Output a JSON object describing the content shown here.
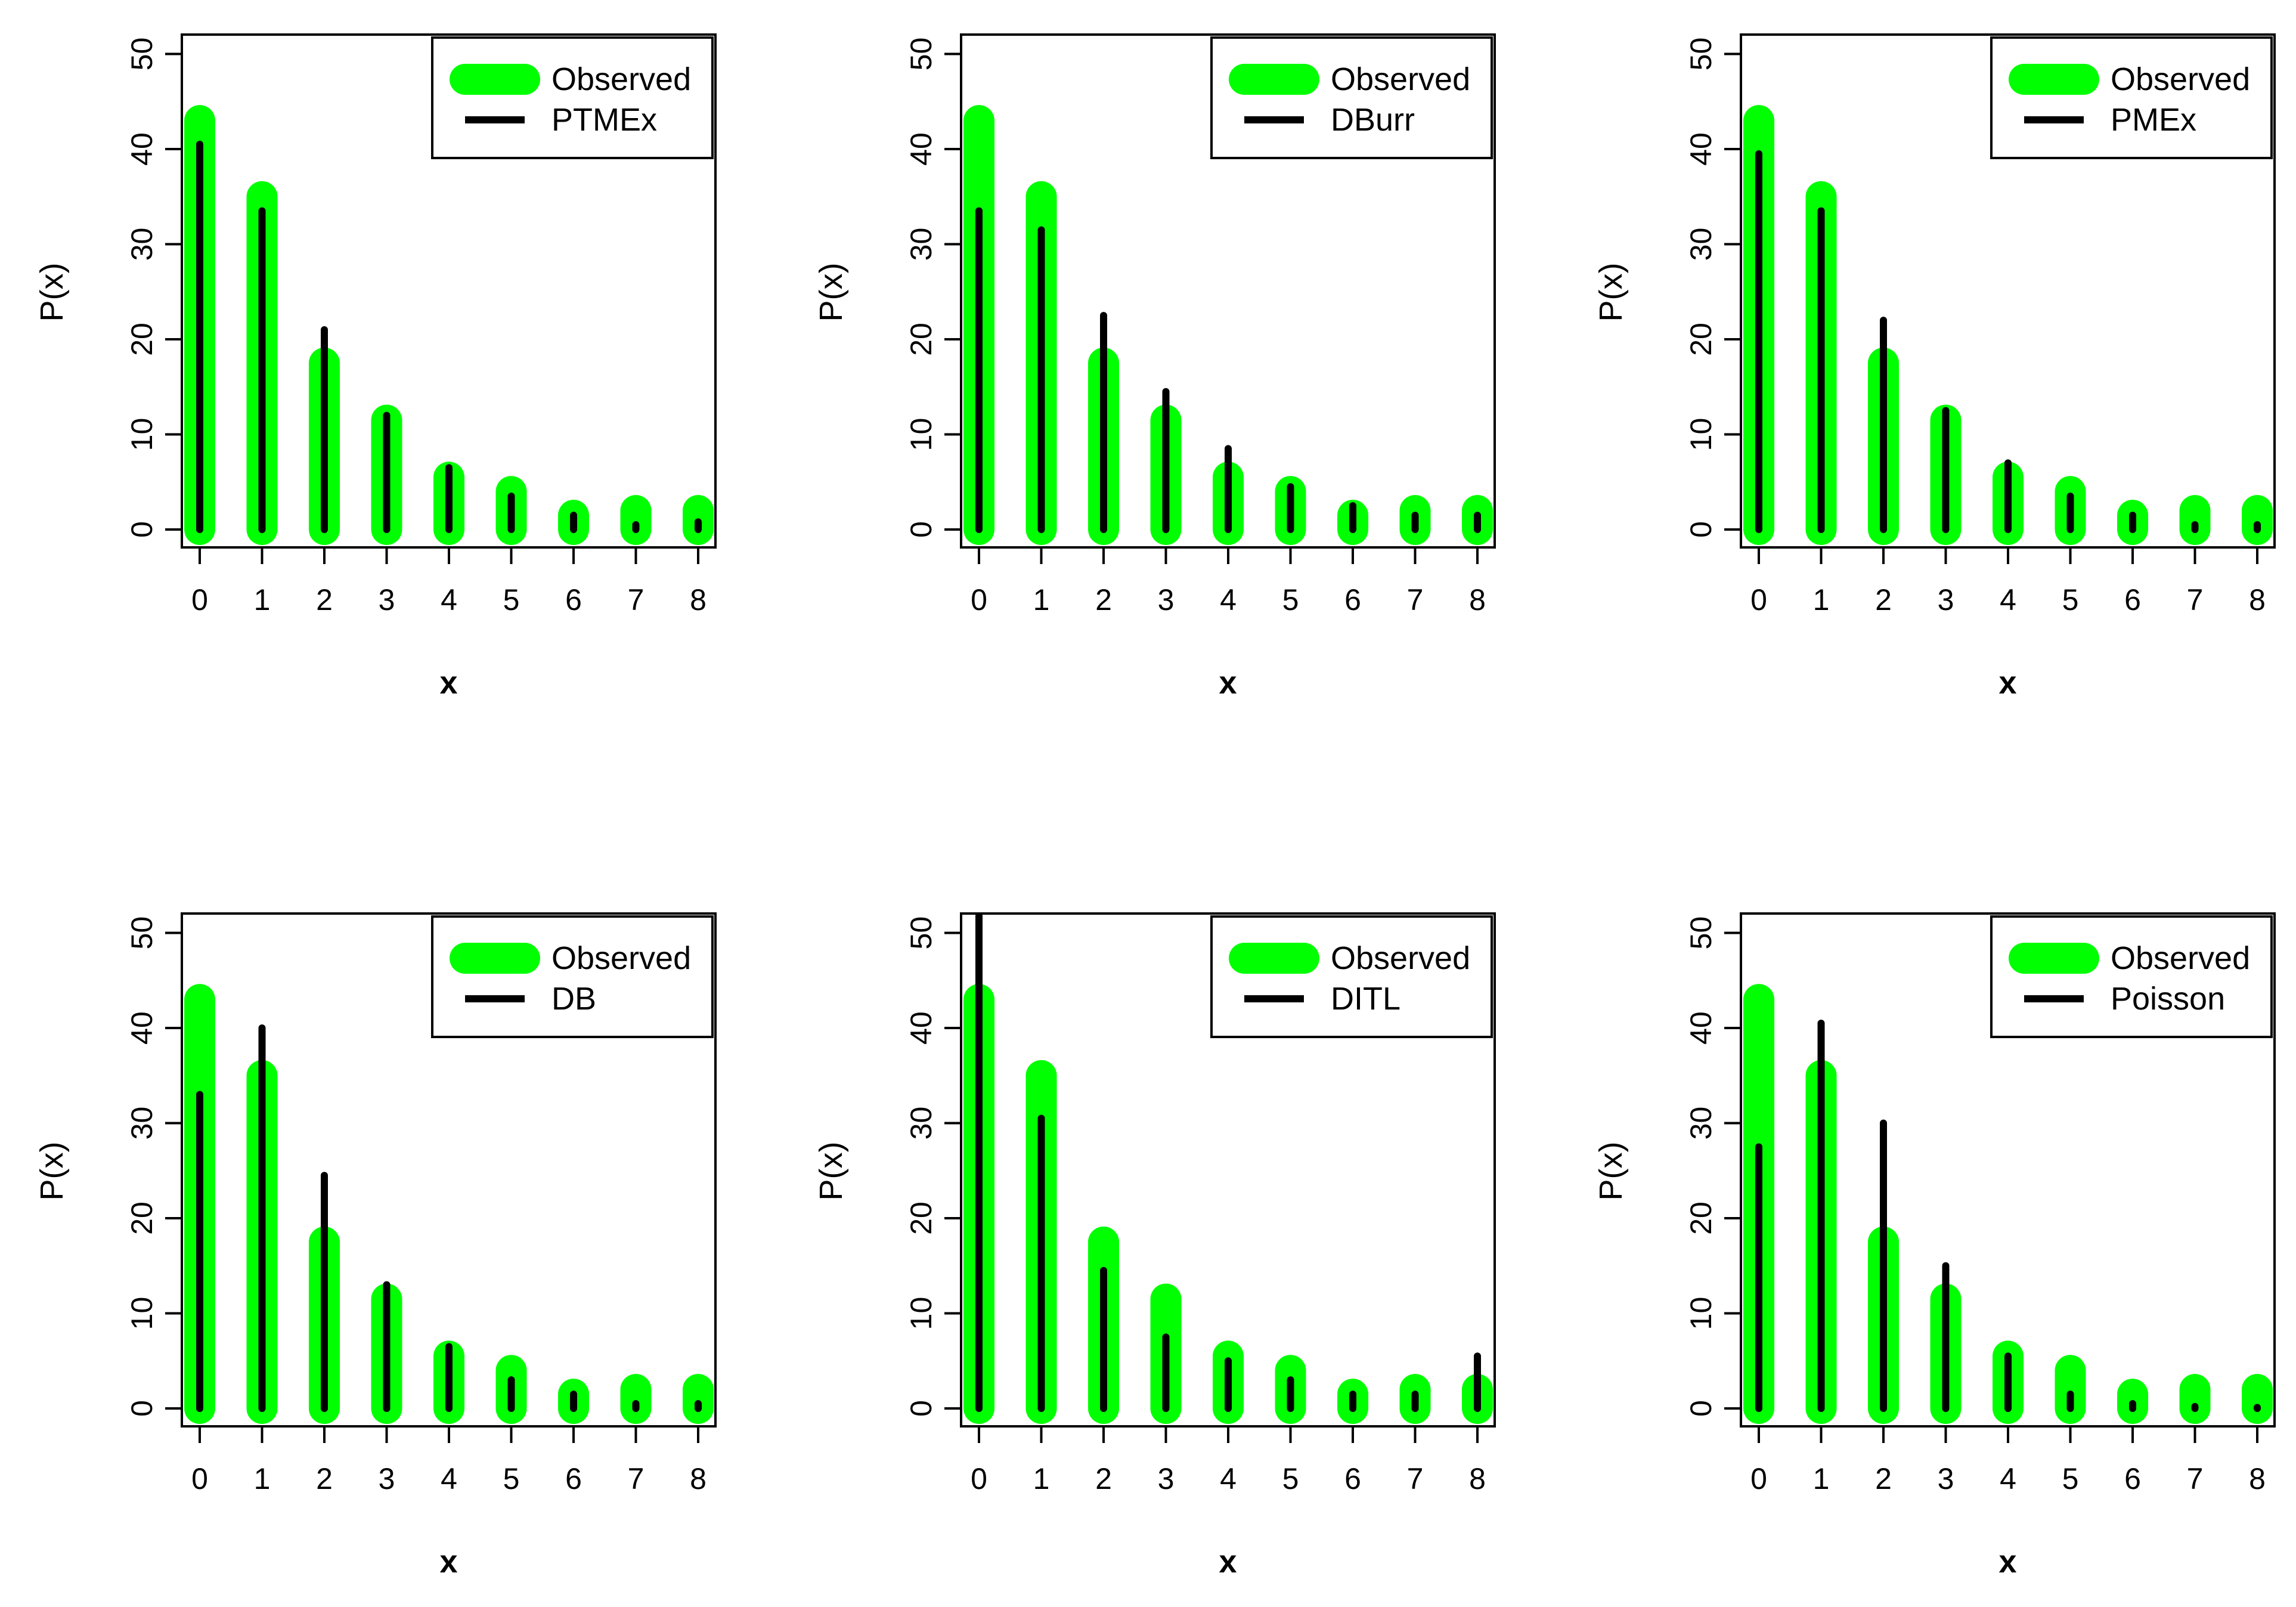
{
  "colors": {
    "observed": "#00ff00",
    "fitted": "#000000",
    "axis": "#000000",
    "background": "#ffffff"
  },
  "chart_data": [
    {
      "type": "bar",
      "xlabel": "x",
      "ylabel": "P(x)",
      "x": [
        0,
        1,
        2,
        3,
        4,
        5,
        6,
        7,
        8
      ],
      "ylim": [
        0,
        50
      ],
      "yticks": [
        0,
        10,
        20,
        30,
        40,
        50
      ],
      "legend_position": "top-right",
      "series": [
        {
          "name": "Observed",
          "values": [
            43,
            35,
            17.5,
            11.5,
            5.5,
            4,
            1.5,
            2,
            2
          ]
        },
        {
          "name": "PTMEx",
          "values": [
            40.5,
            33.5,
            21,
            12,
            6.5,
            3.5,
            1.5,
            0.5,
            0.8
          ]
        }
      ]
    },
    {
      "type": "bar",
      "xlabel": "x",
      "ylabel": "P(x)",
      "x": [
        0,
        1,
        2,
        3,
        4,
        5,
        6,
        7,
        8
      ],
      "ylim": [
        0,
        50
      ],
      "yticks": [
        0,
        10,
        20,
        30,
        40,
        50
      ],
      "legend_position": "top-right",
      "series": [
        {
          "name": "Observed",
          "values": [
            43,
            35,
            17.5,
            11.5,
            5.5,
            4,
            1.5,
            2,
            2
          ]
        },
        {
          "name": "DBurr",
          "values": [
            33.5,
            31.5,
            22.5,
            14.5,
            8.5,
            4.5,
            2.5,
            1.5,
            1.5
          ]
        }
      ]
    },
    {
      "type": "bar",
      "xlabel": "x",
      "ylabel": "P(x)",
      "x": [
        0,
        1,
        2,
        3,
        4,
        5,
        6,
        7,
        8
      ],
      "ylim": [
        0,
        50
      ],
      "yticks": [
        0,
        10,
        20,
        30,
        40,
        50
      ],
      "legend_position": "top-right",
      "series": [
        {
          "name": "Observed",
          "values": [
            43,
            35,
            17.5,
            11.5,
            5.5,
            4,
            1.5,
            2,
            2
          ]
        },
        {
          "name": "PMEx",
          "values": [
            39.5,
            33.5,
            22,
            12.5,
            7,
            3.5,
            1.5,
            0.5,
            0.5
          ]
        }
      ]
    },
    {
      "type": "bar",
      "xlabel": "x",
      "ylabel": "P(x)",
      "x": [
        0,
        1,
        2,
        3,
        4,
        5,
        6,
        7,
        8
      ],
      "ylim": [
        0,
        50
      ],
      "yticks": [
        0,
        10,
        20,
        30,
        40,
        50
      ],
      "legend_position": "top-right",
      "series": [
        {
          "name": "Observed",
          "values": [
            43,
            35,
            17.5,
            11.5,
            5.5,
            4,
            1.5,
            2,
            2
          ]
        },
        {
          "name": "DB",
          "values": [
            33,
            40,
            24.5,
            13,
            6.5,
            3,
            1.5,
            0.5,
            0.5
          ]
        }
      ]
    },
    {
      "type": "bar",
      "xlabel": "x",
      "ylabel": "P(x)",
      "x": [
        0,
        1,
        2,
        3,
        4,
        5,
        6,
        7,
        8
      ],
      "ylim": [
        0,
        50
      ],
      "yticks": [
        0,
        10,
        20,
        30,
        40,
        50
      ],
      "legend_position": "top-right",
      "series": [
        {
          "name": "Observed",
          "values": [
            43,
            35,
            17.5,
            11.5,
            5.5,
            4,
            1.5,
            2,
            2
          ]
        },
        {
          "name": "DITL",
          "values": [
            52,
            30.5,
            14.5,
            7.5,
            5,
            3,
            1.5,
            1.5,
            5.5
          ]
        }
      ]
    },
    {
      "type": "bar",
      "xlabel": "x",
      "ylabel": "P(x)",
      "x": [
        0,
        1,
        2,
        3,
        4,
        5,
        6,
        7,
        8
      ],
      "ylim": [
        0,
        50
      ],
      "yticks": [
        0,
        10,
        20,
        30,
        40,
        50
      ],
      "legend_position": "top-right",
      "series": [
        {
          "name": "Observed",
          "values": [
            43,
            35,
            17.5,
            11.5,
            5.5,
            4,
            1.5,
            2,
            2
          ]
        },
        {
          "name": "Poisson",
          "values": [
            27.5,
            40.5,
            30,
            15,
            5.5,
            1.5,
            0.5,
            0.2,
            0.1
          ]
        }
      ]
    }
  ]
}
